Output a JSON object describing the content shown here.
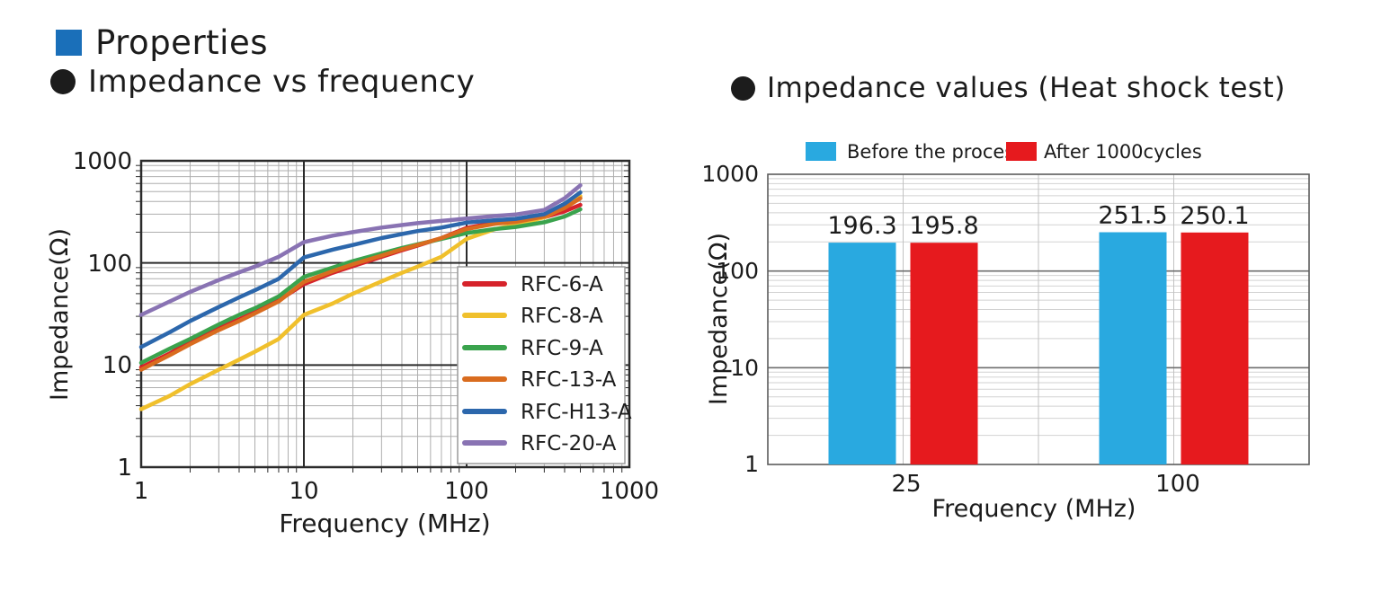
{
  "header": {
    "properties_label": "Properties",
    "left_chart_title": "Impedance vs frequency",
    "right_chart_title": "Impedance values (Heat shock test)"
  },
  "colors": {
    "header_square": "#1a6fb9",
    "bullet": "#1c1c1c"
  },
  "chart_data": [
    {
      "id": "impedance-vs-frequency",
      "type": "line",
      "title": "Impedance vs frequency",
      "xlabel": "Frequency (MHz)",
      "ylabel": "Impedance(Ω)",
      "x_scale": "log",
      "y_scale": "log",
      "xlim": [
        1,
        1000
      ],
      "ylim": [
        1,
        1000
      ],
      "x_ticks": [
        "1",
        "10",
        "100",
        "1000"
      ],
      "y_ticks": [
        "1000",
        "100",
        "10",
        "1"
      ],
      "grid": "log major and minor, both axes",
      "legend_position": "inside lower right",
      "x": [
        1,
        1.5,
        2,
        3,
        4,
        5,
        7,
        10,
        15,
        20,
        30,
        40,
        50,
        70,
        100,
        150,
        200,
        300,
        400,
        500
      ],
      "series": [
        {
          "name": "RFC-6-A",
          "color": "#d6232b",
          "values": [
            9.5,
            13,
            17,
            23,
            28,
            33,
            43,
            62,
            80,
            93,
            115,
            133,
            148,
            175,
            220,
            248,
            258,
            280,
            320,
            370
          ]
        },
        {
          "name": "RFC-8-A",
          "color": "#f0c02c",
          "values": [
            3.7,
            5,
            6.5,
            9,
            11.3,
            13.5,
            18,
            31,
            40,
            50,
            66,
            80,
            92,
            115,
            172,
            215,
            235,
            280,
            350,
            450
          ]
        },
        {
          "name": "RFC-9-A",
          "color": "#3aa34d",
          "values": [
            10.5,
            14.5,
            18,
            25,
            31,
            36,
            47,
            73,
            90,
            104,
            124,
            140,
            152,
            172,
            196,
            215,
            225,
            250,
            285,
            335
          ]
        },
        {
          "name": "RFC-13-A",
          "color": "#d96c1f",
          "values": [
            9,
            12.5,
            16,
            22,
            27,
            32,
            42,
            65,
            83,
            97,
            118,
            136,
            150,
            175,
            215,
            242,
            252,
            285,
            345,
            430
          ]
        },
        {
          "name": "RFC-H13-A",
          "color": "#2c67ac",
          "values": [
            15,
            21,
            27,
            37,
            46,
            54,
            70,
            113,
            135,
            150,
            175,
            192,
            205,
            222,
            248,
            262,
            270,
            300,
            380,
            490
          ]
        },
        {
          "name": "RFC-20-A",
          "color": "#8973b3",
          "values": [
            31,
            42,
            52,
            68,
            81,
            92,
            115,
            160,
            185,
            200,
            222,
            235,
            245,
            258,
            272,
            288,
            298,
            330,
            430,
            575
          ]
        }
      ]
    },
    {
      "id": "impedance-heat-shock",
      "type": "bar",
      "title": "Impedance values (Heat shock test)",
      "xlabel": "Frequency (MHz)",
      "ylabel": "Impedance(Ω)",
      "y_scale": "log",
      "ylim": [
        1,
        1000
      ],
      "y_ticks": [
        "1000",
        "100",
        "10",
        "1"
      ],
      "categories": [
        "25",
        "100"
      ],
      "legend_position": "top",
      "series": [
        {
          "name": "Before the process",
          "color": "#29a9e0",
          "values": [
            196.3,
            251.5
          ]
        },
        {
          "name": "After 1000cycles",
          "color": "#e61a1e",
          "values": [
            195.8,
            250.1
          ]
        }
      ]
    }
  ]
}
